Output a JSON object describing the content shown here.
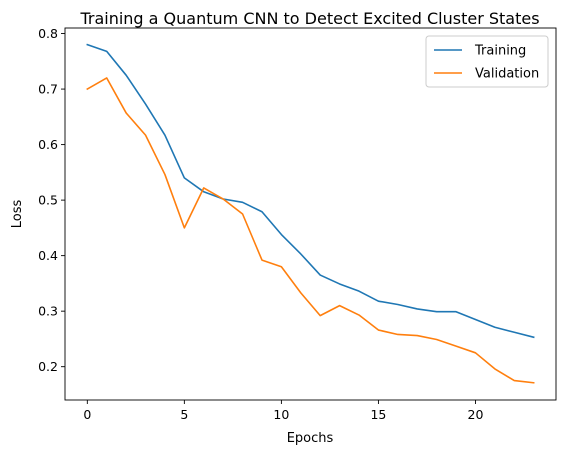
{
  "chart_data": {
    "type": "line",
    "title": "Training a Quantum CNN to Detect Excited Cluster States",
    "xlabel": "Epochs",
    "ylabel": "Loss",
    "xlim": [
      -1.15,
      24.15
    ],
    "ylim": [
      0.14,
      0.81
    ],
    "xticks": [
      0,
      5,
      10,
      15,
      20
    ],
    "yticks": [
      0.2,
      0.3,
      0.4,
      0.5,
      0.6,
      0.7,
      0.8
    ],
    "xtick_labels": [
      "0",
      "5",
      "10",
      "15",
      "20"
    ],
    "ytick_labels": [
      "0.2",
      "0.3",
      "0.4",
      "0.5",
      "0.6",
      "0.7",
      "0.8"
    ],
    "grid": false,
    "legend_position": "top-right",
    "x": [
      0,
      1,
      2,
      3,
      4,
      5,
      6,
      7,
      8,
      9,
      10,
      11,
      12,
      13,
      14,
      15,
      16,
      17,
      18,
      19,
      20,
      21,
      22,
      23
    ],
    "series": [
      {
        "name": "Training",
        "color": "#1f77b4",
        "values": [
          0.78,
          0.768,
          0.725,
          0.673,
          0.617,
          0.54,
          0.515,
          0.502,
          0.496,
          0.479,
          0.438,
          0.403,
          0.365,
          0.349,
          0.336,
          0.318,
          0.312,
          0.304,
          0.299,
          0.299,
          0.285,
          0.271,
          0.262,
          0.253
        ]
      },
      {
        "name": "Validation",
        "color": "#ff7f0e",
        "values": [
          0.7,
          0.72,
          0.657,
          0.617,
          0.546,
          0.45,
          0.522,
          0.502,
          0.475,
          0.392,
          0.38,
          0.333,
          0.292,
          0.31,
          0.293,
          0.266,
          0.258,
          0.256,
          0.249,
          0.237,
          0.225,
          0.196,
          0.175,
          0.171
        ]
      }
    ]
  }
}
